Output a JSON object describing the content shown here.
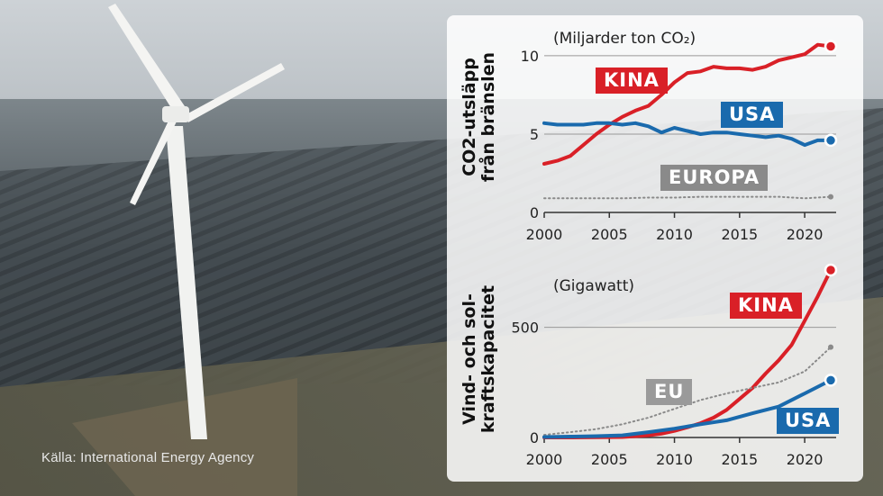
{
  "source": "Källa: International Energy Agency",
  "chart_data": [
    {
      "type": "line",
      "title": "CO2-utsläpp från bränslen",
      "title_lines": [
        "CO2-utsläpp",
        "från bränslen"
      ],
      "unit": "(Miljarder ton CO₂)",
      "xlim": [
        2000,
        2022
      ],
      "ylim": [
        0,
        10.8
      ],
      "xticks": [
        2000,
        2005,
        2010,
        2015,
        2020
      ],
      "xtick_labels": [
        "2000",
        "2005",
        "2010",
        "2015",
        "2020"
      ],
      "yticks": [
        0,
        5,
        10
      ],
      "ytick_labels": [
        "0",
        "5",
        "10"
      ],
      "series": [
        {
          "name": "KINA",
          "color": "#d92027",
          "style": "solid",
          "x": [
            2000,
            2001,
            2002,
            2003,
            2004,
            2005,
            2006,
            2007,
            2008,
            2009,
            2010,
            2011,
            2012,
            2013,
            2014,
            2015,
            2016,
            2017,
            2018,
            2019,
            2020,
            2021,
            2022
          ],
          "y": [
            3.1,
            3.3,
            3.6,
            4.3,
            5.0,
            5.6,
            6.1,
            6.5,
            6.8,
            7.5,
            8.3,
            8.9,
            9.0,
            9.3,
            9.2,
            9.2,
            9.1,
            9.3,
            9.7,
            9.9,
            10.1,
            10.7,
            10.6
          ]
        },
        {
          "name": "USA",
          "color": "#1a6aad",
          "style": "solid",
          "x": [
            2000,
            2001,
            2002,
            2003,
            2004,
            2005,
            2006,
            2007,
            2008,
            2009,
            2010,
            2011,
            2012,
            2013,
            2014,
            2015,
            2016,
            2017,
            2018,
            2019,
            2020,
            2021,
            2022
          ],
          "y": [
            5.7,
            5.6,
            5.6,
            5.6,
            5.7,
            5.7,
            5.6,
            5.7,
            5.5,
            5.1,
            5.4,
            5.2,
            5.0,
            5.1,
            5.1,
            5.0,
            4.9,
            4.8,
            4.9,
            4.7,
            4.3,
            4.6,
            4.6
          ]
        },
        {
          "name": "EUROPA",
          "color": "#8a8a8a",
          "style": "dotted",
          "x": [
            2000,
            2002,
            2004,
            2006,
            2008,
            2010,
            2012,
            2014,
            2016,
            2018,
            2020,
            2022
          ],
          "y": [
            0.9,
            0.9,
            0.9,
            0.9,
            0.95,
            0.95,
            1.0,
            1.0,
            1.0,
            1.0,
            0.9,
            1.0
          ]
        }
      ]
    },
    {
      "type": "line",
      "title": "Vind- och solkraftskapacitet",
      "title_lines": [
        "Vind- och sol-",
        "kraftskapacitet"
      ],
      "unit": "(Gigawatt)",
      "xlim": [
        2000,
        2022
      ],
      "ylim": [
        0,
        760
      ],
      "xticks": [
        2000,
        2005,
        2010,
        2015,
        2020
      ],
      "xtick_labels": [
        "2000",
        "2005",
        "2010",
        "2015",
        "2020"
      ],
      "yticks": [
        0,
        500
      ],
      "ytick_labels": [
        "0",
        "500"
      ],
      "series": [
        {
          "name": "KINA",
          "color": "#d92027",
          "style": "solid",
          "x": [
            2000,
            2002,
            2004,
            2006,
            2008,
            2009,
            2010,
            2011,
            2012,
            2013,
            2014,
            2015,
            2016,
            2017,
            2018,
            2019,
            2020,
            2021,
            2022
          ],
          "y": [
            0,
            0,
            1,
            2,
            10,
            17,
            30,
            46,
            65,
            90,
            125,
            175,
            225,
            290,
            350,
            420,
            530,
            640,
            760
          ]
        },
        {
          "name": "EU",
          "color": "#8a8a8a",
          "style": "dotted",
          "x": [
            2000,
            2002,
            2004,
            2006,
            2008,
            2010,
            2012,
            2014,
            2016,
            2018,
            2020,
            2022
          ],
          "y": [
            12,
            24,
            38,
            60,
            90,
            130,
            170,
            200,
            225,
            250,
            300,
            410
          ]
        },
        {
          "name": "USA",
          "color": "#1a6aad",
          "style": "solid",
          "x": [
            2000,
            2002,
            2004,
            2006,
            2008,
            2010,
            2012,
            2014,
            2016,
            2018,
            2020,
            2022
          ],
          "y": [
            2,
            4,
            6,
            10,
            24,
            40,
            60,
            78,
            110,
            140,
            200,
            260
          ]
        }
      ]
    }
  ]
}
